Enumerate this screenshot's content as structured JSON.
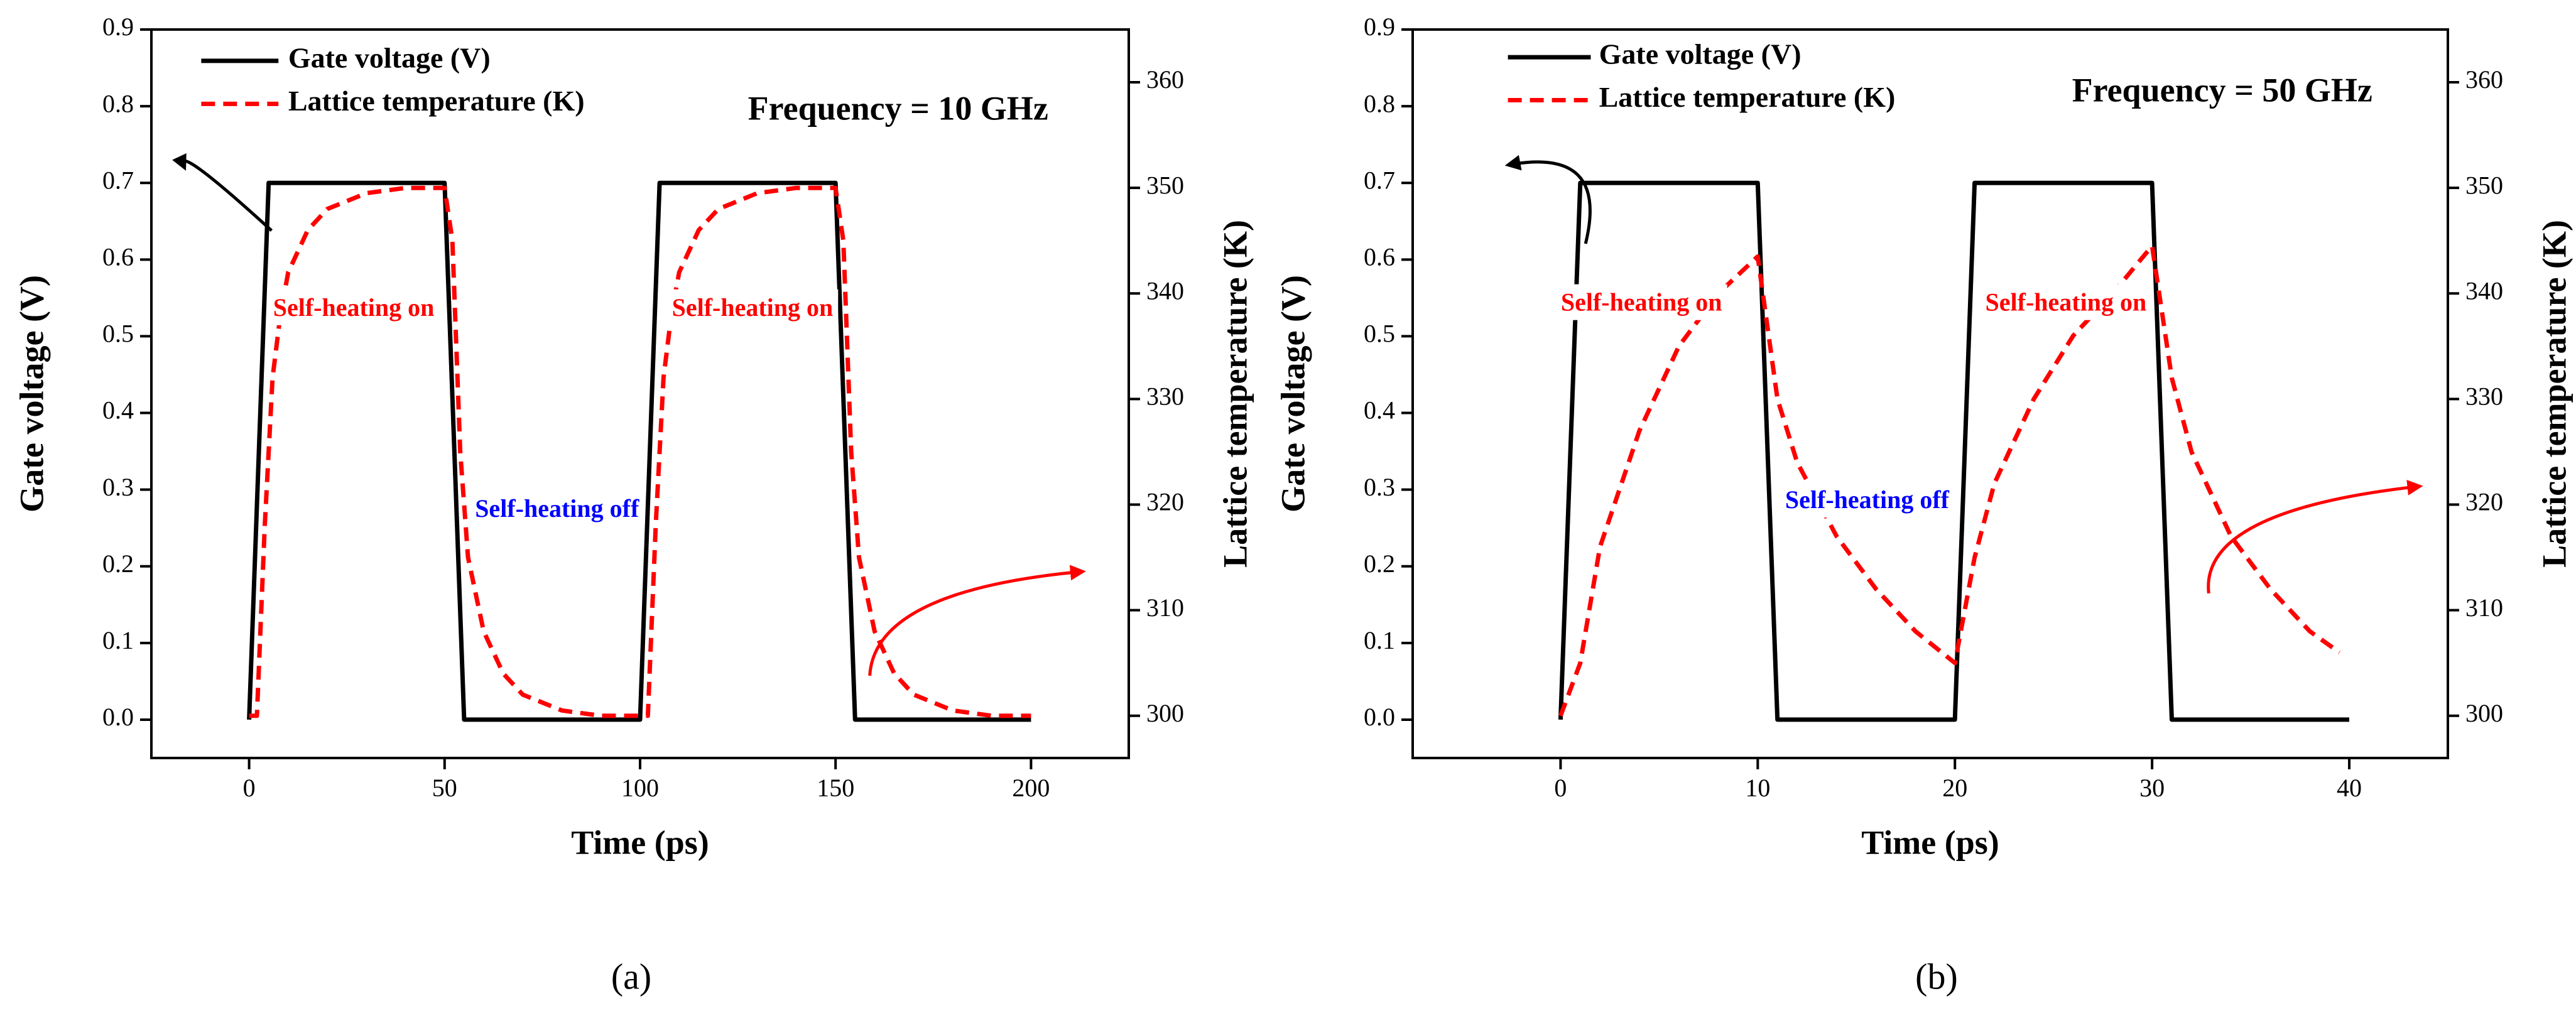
{
  "chart_data": [
    {
      "type": "line",
      "panel_label": "(a)",
      "xlabel": "Time (ps)",
      "ylabel": "Gate voltage (V)",
      "y2label": "Lattice temperature (K)",
      "xlim": [
        -25,
        225
      ],
      "xticks": [
        0,
        50,
        100,
        150,
        200
      ],
      "ylim": [
        -0.05,
        0.9
      ],
      "yticks": [
        {
          "value": 0,
          "label": "0.0"
        },
        0.1,
        0.2,
        0.3,
        0.4,
        0.5,
        0.6,
        0.7,
        0.8,
        0.9
      ],
      "y2lim": [
        296,
        365
      ],
      "y2ticks": [
        300,
        310,
        320,
        330,
        340,
        350,
        360
      ],
      "series": [
        {
          "name": "Gate voltage (V)",
          "color": "#000000",
          "dash": "solid",
          "x": [
            0,
            5,
            50,
            55,
            100,
            105,
            150,
            155,
            200
          ],
          "values": [
            0,
            0.7,
            0.7,
            0,
            0,
            0.7,
            0.7,
            0,
            0
          ]
        },
        {
          "name": "Lattice temperature (K)",
          "color": "#ff0000",
          "dash": "dashed",
          "axis": "y2",
          "x": [
            0,
            2,
            4,
            6,
            8,
            10,
            15,
            20,
            30,
            40,
            50,
            52,
            54,
            56,
            60,
            65,
            70,
            80,
            90,
            100,
            102,
            104,
            106,
            108,
            110,
            115,
            120,
            130,
            140,
            150,
            152,
            154,
            156,
            160,
            165,
            170,
            180,
            190,
            200
          ],
          "values": [
            300,
            300,
            318,
            332,
            338,
            342,
            346,
            348,
            349.5,
            350,
            350,
            345,
            325,
            315,
            308,
            304,
            302,
            300.5,
            300,
            300,
            300,
            318,
            332,
            338,
            342,
            346,
            348,
            349.5,
            350,
            350,
            345,
            325,
            315,
            308,
            304,
            302,
            300.5,
            300,
            300
          ]
        }
      ],
      "annotations": [
        {
          "text": "Frequency = 10 GHz",
          "color": "#000000"
        },
        {
          "text": "Self-heating on",
          "color": "#ff0000"
        },
        {
          "text": "Self-heating on",
          "color": "#ff0000"
        },
        {
          "text": "Self-heating off",
          "color": "#0000ff"
        }
      ]
    },
    {
      "type": "line",
      "panel_label": "(b)",
      "xlabel": "Time (ps)",
      "ylabel": "Gate voltage (V)",
      "y2label": "Lattice temperature (K)",
      "xlim": [
        -7.5,
        45
      ],
      "xticks": [
        0,
        10,
        20,
        30,
        40
      ],
      "ylim": [
        -0.05,
        0.9
      ],
      "yticks": [
        {
          "value": 0,
          "label": "0.0"
        },
        0.1,
        0.2,
        0.3,
        0.4,
        0.5,
        0.6,
        0.7,
        0.8,
        0.9
      ],
      "y2lim": [
        296,
        365
      ],
      "y2ticks": [
        300,
        310,
        320,
        330,
        340,
        350,
        360
      ],
      "series": [
        {
          "name": "Gate voltage (V)",
          "color": "#000000",
          "dash": "solid",
          "x": [
            0,
            1,
            10,
            11,
            20,
            21,
            30,
            31,
            40
          ],
          "values": [
            0,
            0.7,
            0.7,
            0,
            0,
            0.7,
            0.7,
            0,
            0
          ]
        },
        {
          "name": "Lattice temperature (K)",
          "color": "#ff0000",
          "dash": "dashed",
          "axis": "y2",
          "x": [
            0,
            1,
            2,
            4,
            6,
            8,
            10,
            11,
            12,
            14,
            16,
            18,
            20,
            21,
            22,
            24,
            26,
            28,
            30,
            31,
            32,
            34,
            36,
            38,
            39.5
          ],
          "values": [
            300,
            305,
            316,
            327,
            335,
            340,
            343.5,
            330,
            324,
            317,
            312,
            308,
            305,
            315,
            322,
            330,
            336,
            340,
            344.5,
            332,
            325,
            317,
            312,
            308,
            306
          ]
        }
      ],
      "annotations": [
        {
          "text": "Frequency = 50 GHz",
          "color": "#000000"
        },
        {
          "text": "Self-heating on",
          "color": "#ff0000"
        },
        {
          "text": "Self-heating on",
          "color": "#ff0000"
        },
        {
          "text": "Self-heating off",
          "color": "#0000ff"
        }
      ]
    }
  ]
}
